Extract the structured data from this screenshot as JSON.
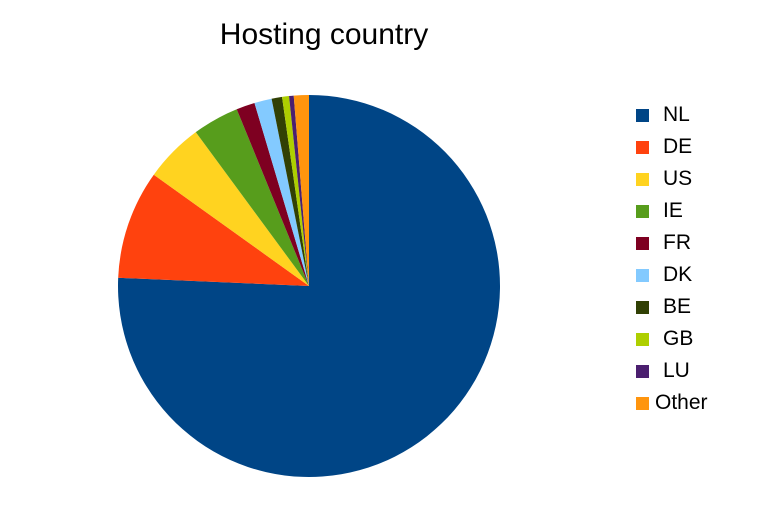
{
  "chart_data": {
    "type": "pie",
    "title": "Hosting country",
    "legend_position": "right",
    "slices": [
      {
        "label": "NL",
        "value": 77.2,
        "color": "#004586"
      },
      {
        "label": "DE",
        "value": 9.4,
        "color": "#ff420e"
      },
      {
        "label": "US",
        "value": 5.1,
        "color": "#ffd320"
      },
      {
        "label": "IE",
        "value": 4.0,
        "color": "#579d1c"
      },
      {
        "label": "FR",
        "value": 1.6,
        "color": "#7e0021"
      },
      {
        "label": "DK",
        "value": 1.5,
        "color": "#83caff"
      },
      {
        "label": "BE",
        "value": 0.9,
        "color": "#314004"
      },
      {
        "label": "GB",
        "value": 0.6,
        "color": "#aecf00"
      },
      {
        "label": "LU",
        "value": 0.4,
        "color": "#4b1f6f"
      },
      {
        "label": "Other",
        "value": 1.3,
        "color": "#ff950e"
      }
    ]
  }
}
